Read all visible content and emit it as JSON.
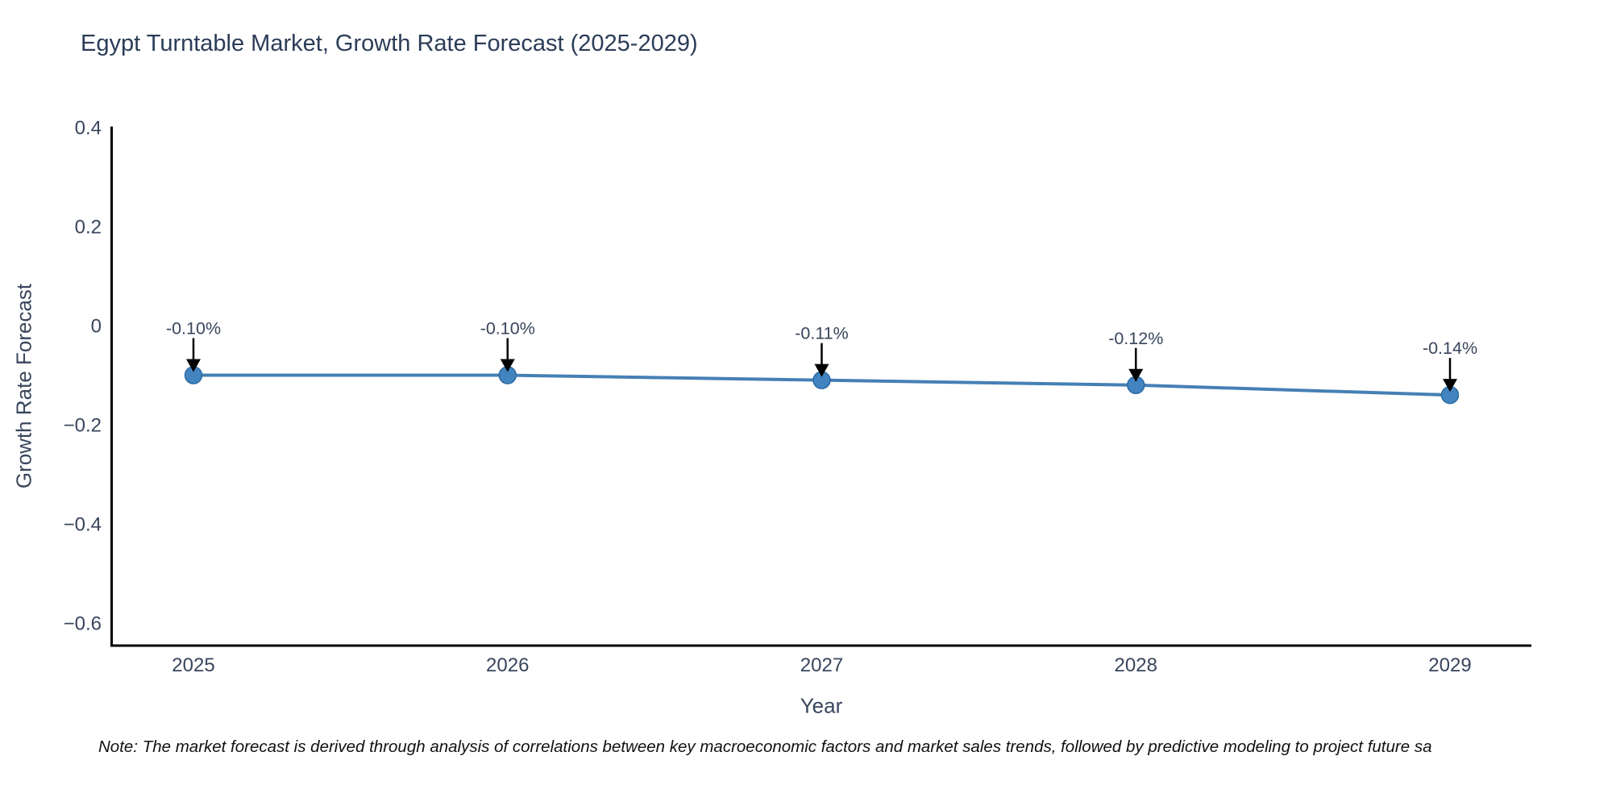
{
  "title": "Egypt Turntable Market, Growth Rate Forecast (2025-2029)",
  "note": "Note: The market forecast is derived through analysis of correlations between key macroeconomic factors and market sales trends, followed by predictive modeling to project future sa",
  "chart_data": {
    "type": "line",
    "x": [
      2025,
      2026,
      2027,
      2028,
      2029
    ],
    "series": [
      {
        "name": "Growth Rate Forecast",
        "values": [
          -0.1,
          -0.1,
          -0.11,
          -0.12,
          -0.14
        ]
      }
    ],
    "point_labels": [
      "-0.10%",
      "-0.10%",
      "-0.11%",
      "-0.12%",
      "-0.14%"
    ],
    "title": "Egypt Turntable Market, Growth Rate Forecast (2025-2029)",
    "xlabel": "Year",
    "ylabel": "Growth Rate Forecast",
    "ylim": [
      -0.645,
      0.4
    ],
    "yticks": [
      0.4,
      0.2,
      0,
      -0.2,
      -0.4,
      -0.6
    ],
    "grid": false,
    "legend": false,
    "colors": {
      "line": "#4580b4",
      "marker_fill": "#4184bf",
      "marker_edge": "#2e6ba3",
      "annotation_arrow": "#000000",
      "axis_line": "#000000",
      "tick_text": "#38455c",
      "title_text": "#2b3c57",
      "note_text": "#111111"
    }
  }
}
